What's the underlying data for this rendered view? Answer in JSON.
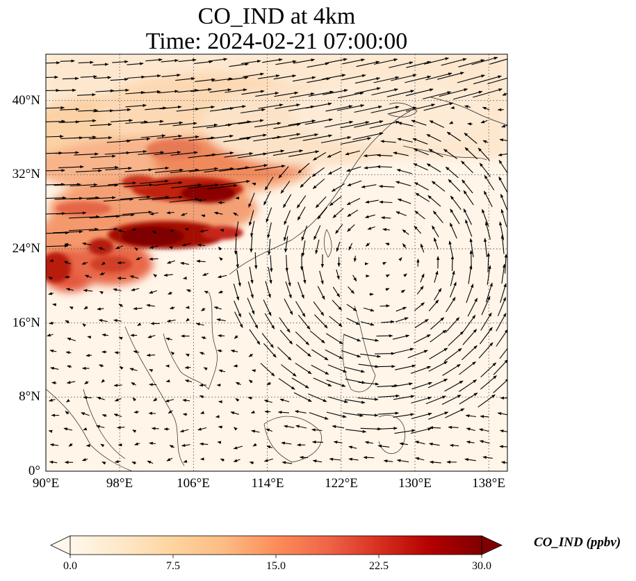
{
  "title": {
    "line1": "CO_IND at 4km",
    "line2": "Time: 2024-02-21 07:00:00"
  },
  "map": {
    "lon_range": [
      90,
      140
    ],
    "lat_range": [
      0,
      45
    ],
    "x_ticks": [
      "90°E",
      "98°E",
      "106°E",
      "114°E",
      "122°E",
      "130°E",
      "138°E"
    ],
    "x_tick_values": [
      90,
      98,
      106,
      114,
      122,
      130,
      138
    ],
    "y_ticks": [
      "0°",
      "8°N",
      "16°N",
      "24°N",
      "32°N",
      "40°N"
    ],
    "y_tick_values": [
      0,
      8,
      16,
      24,
      32,
      40
    ],
    "gridlines": true,
    "wind_vectors": "black arrows",
    "circulation_center_lat_lon": [
      20,
      130
    ]
  },
  "colorbar": {
    "label": "CO_IND (ppbv)",
    "ticks": [
      "0.0",
      "7.5",
      "15.0",
      "22.5",
      "30.0"
    ],
    "tick_values": [
      0,
      7.5,
      15,
      22.5,
      30
    ],
    "range": [
      0,
      30
    ],
    "colormap": "OrRd",
    "colors": [
      "#fff7ec",
      "#fee8c8",
      "#fdd49e",
      "#fdbb84",
      "#fc8d59",
      "#ef6548",
      "#d7301f",
      "#b30000",
      "#7f0000"
    ],
    "extend": "both"
  }
}
